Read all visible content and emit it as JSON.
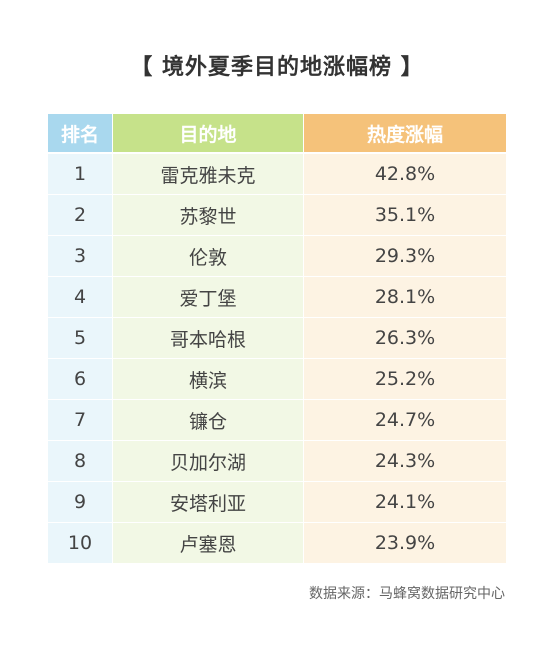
{
  "title": "【 境外夏季目的地涨幅榜 】",
  "table": {
    "headers": {
      "rank": "排名",
      "destination": "目的地",
      "rise": "热度涨幅"
    },
    "rows": [
      {
        "rank": "1",
        "destination": "雷克雅未克",
        "rise": "42.8%"
      },
      {
        "rank": "2",
        "destination": "苏黎世",
        "rise": "35.1%"
      },
      {
        "rank": "3",
        "destination": "伦敦",
        "rise": "29.3%"
      },
      {
        "rank": "4",
        "destination": "爱丁堡",
        "rise": "28.1%"
      },
      {
        "rank": "5",
        "destination": "哥本哈根",
        "rise": "26.3%"
      },
      {
        "rank": "6",
        "destination": "横滨",
        "rise": "25.2%"
      },
      {
        "rank": "7",
        "destination": "镰仓",
        "rise": "24.7%"
      },
      {
        "rank": "8",
        "destination": "贝加尔湖",
        "rise": "24.3%"
      },
      {
        "rank": "9",
        "destination": "安塔利亚",
        "rise": "24.1%"
      },
      {
        "rank": "10",
        "destination": "卢塞恩",
        "rise": "23.9%"
      }
    ]
  },
  "source": "数据来源：马蜂窝数据研究中心",
  "colors": {
    "rank_header": "#a9d8ee",
    "destination_header": "#c6e28a",
    "rise_header": "#f5c27a",
    "rank_cell": "#eaf6fb",
    "destination_cell": "#f2f8e5",
    "rise_cell": "#fdf3e3"
  }
}
